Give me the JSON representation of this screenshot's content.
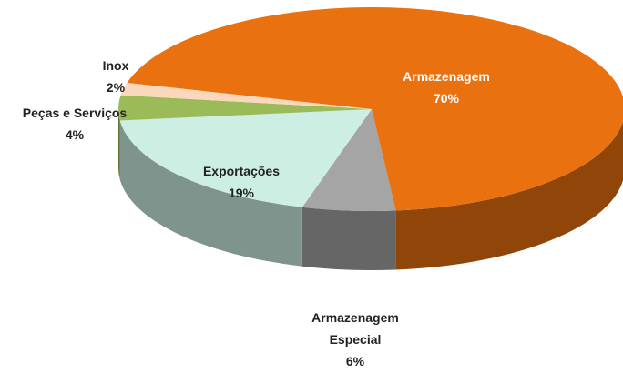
{
  "chart_data": {
    "type": "pie3d",
    "categories": [
      "Armazenagem",
      "Armazenagem Especial",
      "Exportações",
      "Peças e Serviços",
      "Inox"
    ],
    "values": [
      70,
      6,
      19,
      4,
      2
    ],
    "value_labels": [
      "70%",
      "6%",
      "19%",
      "4%",
      "2%"
    ],
    "colors": [
      "#e9710f",
      "#a5a5a5",
      "#cdeee2",
      "#9bbb59",
      "#fbd7bb"
    ]
  }
}
